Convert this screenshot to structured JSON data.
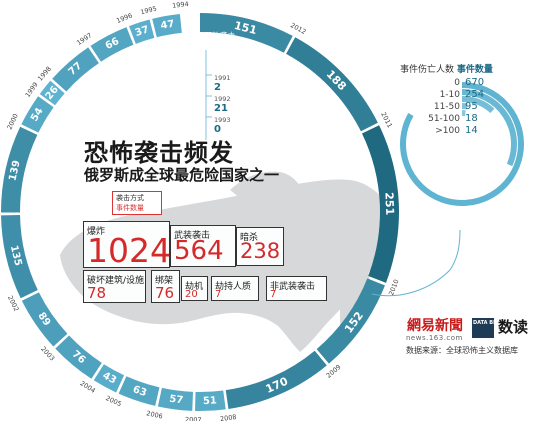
{
  "header": {
    "title": "恐怖袭击频发",
    "subtitle": "俄罗斯成全球最危险国家之一"
  },
  "legend": {
    "line1": "袭击方式",
    "line2": "事件数量"
  },
  "methods": [
    {
      "label": "爆炸",
      "value": "1024"
    },
    {
      "label": "武装袭击",
      "value": "564"
    },
    {
      "label": "暗杀",
      "value": "238"
    },
    {
      "label": "破坏建筑/设施",
      "value": "78"
    },
    {
      "label": "绑架",
      "value": "76"
    },
    {
      "label": "劫机",
      "value": "20"
    },
    {
      "label": "劫持人质",
      "value": "7"
    },
    {
      "label": "非武装袭击",
      "value": "7"
    }
  ],
  "ring_label": {
    "line1": "恐怖袭击",
    "line2": "事件数量"
  },
  "right_panel": {
    "title_a": "事件伤亡人数",
    "title_b": "事件数量"
  },
  "logos": {
    "netease": "網易新聞",
    "url": "news.163.com",
    "datablog": "DATA BLOG",
    "shudu": "数读",
    "source": "数据来源：全球恐怖主义数据库"
  },
  "colors": {
    "ring_light": "#5fb4d1",
    "ring_mid": "#3f8da8",
    "ring_dark": "#1f6981",
    "accent_red": "#d42a2a",
    "map_gray": "#d7d8da"
  },
  "chart_data": [
    {
      "type": "bar",
      "title": "",
      "categories": [
        "1991",
        "1992",
        "1993",
        "1994",
        "1995",
        "1996",
        "1997",
        "1998",
        "1999",
        "2000",
        "2001",
        "2002",
        "2003",
        "2004",
        "2005",
        "2006",
        "2007",
        "2008",
        "2009",
        "2010",
        "2011",
        "2012"
      ],
      "series": [
        {
          "values": [
            2,
            21,
            0,
            47,
            37,
            66,
            77,
            26,
            54,
            139,
            135,
            89,
            76,
            43,
            63,
            57,
            51,
            170,
            152,
            251,
            188,
            151
          ]
        }
      ]
    },
    {
      "type": "bar",
      "title": "",
      "categories": [
        "0",
        "1-10",
        "11-50",
        "51-100",
        ">100"
      ],
      "series": [
        {
          "values": [
            670,
            254,
            95,
            18,
            14
          ]
        }
      ]
    }
  ]
}
